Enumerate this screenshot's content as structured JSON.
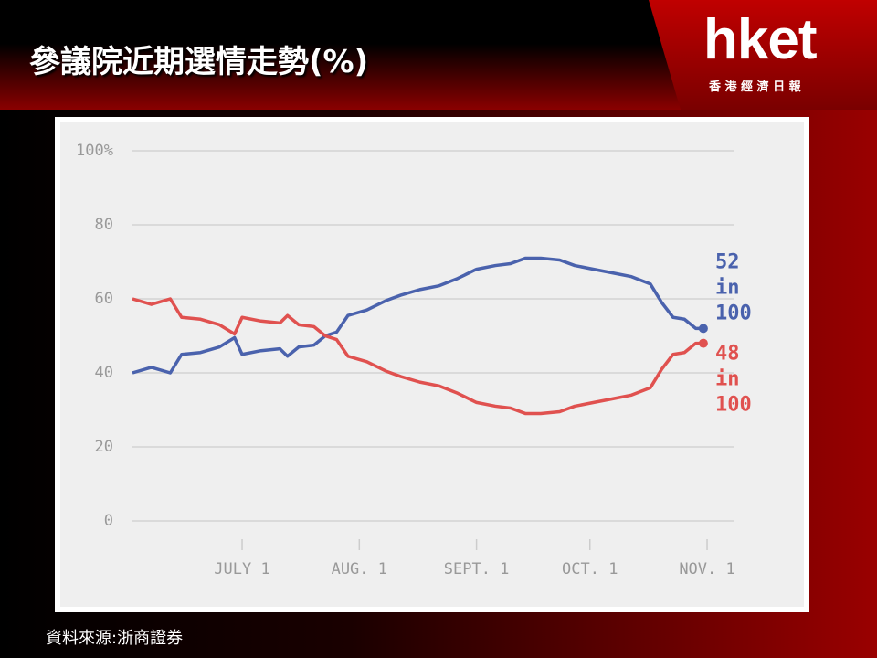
{
  "header": {
    "title": "參議院近期選情走勢(%)",
    "logo": "hket",
    "logo_subtitle": "香 港 經 濟 日 報"
  },
  "footer": {
    "source": "資料來源:浙商證券"
  },
  "chart_data": {
    "type": "line",
    "x": [
      1,
      6,
      11,
      14,
      19,
      24,
      28,
      30,
      35,
      40,
      42,
      45,
      49,
      52,
      55,
      58,
      63,
      68,
      72,
      77,
      82,
      87,
      92,
      97,
      101,
      105,
      109,
      114,
      118,
      123,
      128,
      133,
      138,
      141,
      144,
      147,
      150,
      152
    ],
    "series": [
      {
        "color": "#4a62ad",
        "values": [
          40,
          41.5,
          40,
          45,
          45.5,
          47,
          49.5,
          45,
          46,
          46.5,
          44.5,
          47,
          47.5,
          50,
          51,
          55.5,
          57,
          59.5,
          61,
          62.5,
          63.5,
          65.5,
          68,
          69,
          69.5,
          71,
          71,
          70.5,
          69,
          68,
          67,
          66,
          64,
          59,
          55,
          54.5,
          52,
          52
        ],
        "end_label": [
          "52",
          "in",
          "100"
        ]
      },
      {
        "color": "#e0514f",
        "values": [
          60,
          58.5,
          60,
          55,
          54.5,
          53,
          50.5,
          55,
          54,
          53.5,
          55.5,
          53,
          52.5,
          50,
          49,
          44.5,
          43,
          40.5,
          39,
          37.5,
          36.5,
          34.5,
          32,
          31,
          30.5,
          29,
          29,
          29.5,
          31,
          32,
          33,
          34,
          36,
          41,
          45,
          45.5,
          48,
          48
        ],
        "end_label": [
          "48",
          "in",
          "100"
        ]
      }
    ],
    "xlim": [
      1,
      160
    ],
    "xticks": [
      {
        "value": 30,
        "label": "JULY 1"
      },
      {
        "value": 61,
        "label": "AUG. 1"
      },
      {
        "value": 92,
        "label": "SEPT. 1"
      },
      {
        "value": 122,
        "label": "OCT. 1"
      },
      {
        "value": 153,
        "label": "NOV. 1"
      }
    ],
    "ylim": [
      0,
      100
    ],
    "yticks": [
      0,
      20,
      40,
      60,
      80,
      {
        "value": 100,
        "label": "100%"
      }
    ],
    "grid": true
  }
}
